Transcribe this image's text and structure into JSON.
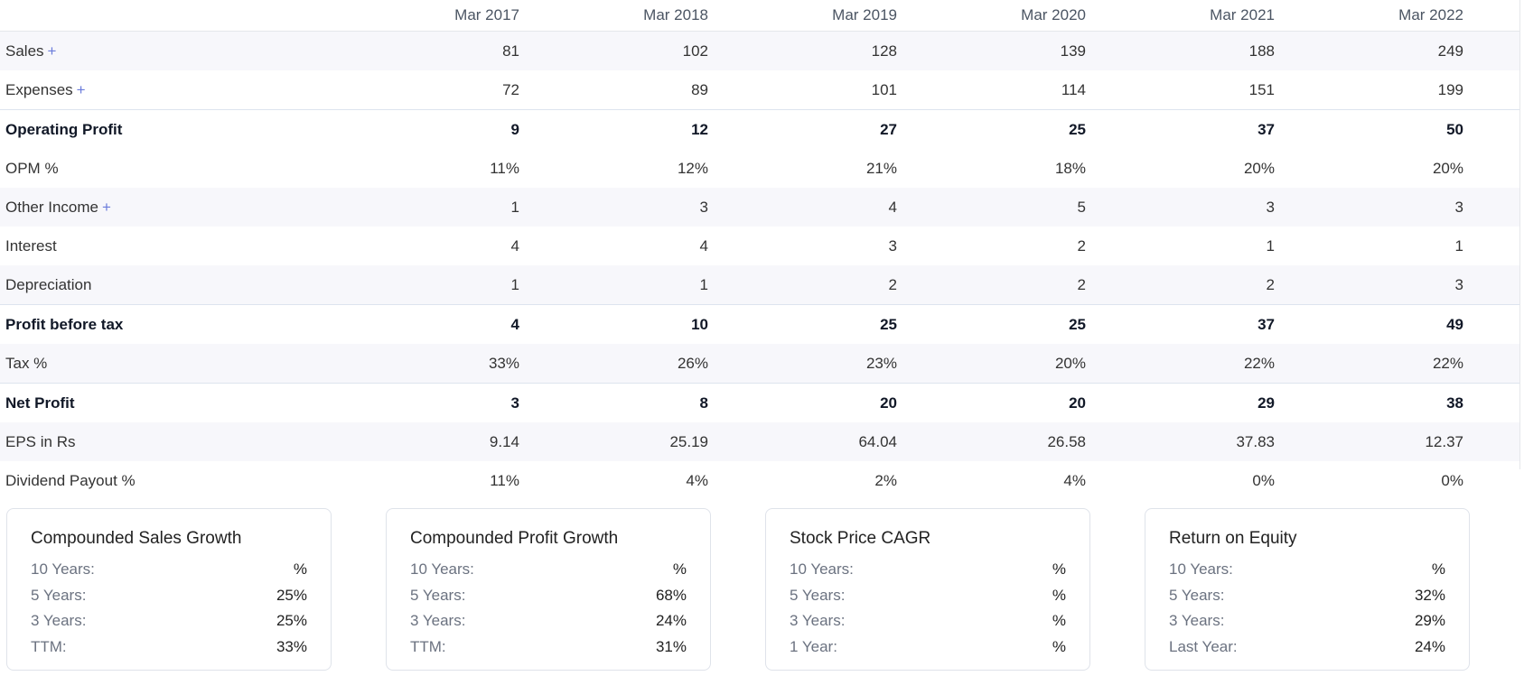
{
  "table": {
    "years": [
      "Mar 2017",
      "Mar 2018",
      "Mar 2019",
      "Mar 2020",
      "Mar 2021",
      "Mar 2022"
    ],
    "rows": [
      {
        "label": "Sales",
        "plus": "+",
        "values": [
          "81",
          "102",
          "128",
          "139",
          "188",
          "249"
        ]
      },
      {
        "label": "Expenses",
        "plus": "+",
        "values": [
          "72",
          "89",
          "101",
          "114",
          "151",
          "199"
        ]
      },
      {
        "label": "Operating Profit",
        "values": [
          "9",
          "12",
          "27",
          "25",
          "37",
          "50"
        ]
      },
      {
        "label": "OPM %",
        "values": [
          "11%",
          "12%",
          "21%",
          "18%",
          "20%",
          "20%"
        ]
      },
      {
        "label": "Other Income",
        "plus": "+",
        "values": [
          "1",
          "3",
          "4",
          "5",
          "3",
          "3"
        ]
      },
      {
        "label": "Interest",
        "values": [
          "4",
          "4",
          "3",
          "2",
          "1",
          "1"
        ]
      },
      {
        "label": "Depreciation",
        "values": [
          "1",
          "1",
          "2",
          "2",
          "2",
          "3"
        ]
      },
      {
        "label": "Profit before tax",
        "values": [
          "4",
          "10",
          "25",
          "25",
          "37",
          "49"
        ]
      },
      {
        "label": "Tax %",
        "values": [
          "33%",
          "26%",
          "23%",
          "20%",
          "22%",
          "22%"
        ]
      },
      {
        "label": "Net Profit",
        "values": [
          "3",
          "8",
          "20",
          "20",
          "29",
          "38"
        ]
      },
      {
        "label": "EPS in Rs",
        "values": [
          "9.14",
          "25.19",
          "64.04",
          "26.58",
          "37.83",
          "12.37"
        ]
      },
      {
        "label": "Dividend Payout %",
        "values": [
          "11%",
          "4%",
          "2%",
          "4%",
          "0%",
          "0%"
        ]
      }
    ]
  },
  "cards": [
    {
      "title": "Compounded Sales Growth",
      "rows": [
        {
          "label": "10 Years:",
          "value": "%"
        },
        {
          "label": "5 Years:",
          "value": "25%"
        },
        {
          "label": "3 Years:",
          "value": "25%"
        },
        {
          "label": "TTM:",
          "value": "33%"
        }
      ]
    },
    {
      "title": "Compounded Profit Growth",
      "rows": [
        {
          "label": "10 Years:",
          "value": "%"
        },
        {
          "label": "5 Years:",
          "value": "68%"
        },
        {
          "label": "3 Years:",
          "value": "24%"
        },
        {
          "label": "TTM:",
          "value": "31%"
        }
      ]
    },
    {
      "title": "Stock Price CAGR",
      "rows": [
        {
          "label": "10 Years:",
          "value": "%"
        },
        {
          "label": "5 Years:",
          "value": "%"
        },
        {
          "label": "3 Years:",
          "value": "%"
        },
        {
          "label": "1 Year:",
          "value": "%"
        }
      ]
    },
    {
      "title": "Return on Equity",
      "rows": [
        {
          "label": "10 Years:",
          "value": "%"
        },
        {
          "label": "5 Years:",
          "value": "32%"
        },
        {
          "label": "3 Years:",
          "value": "29%"
        },
        {
          "label": "Last Year:",
          "value": "24%"
        }
      ]
    }
  ]
}
